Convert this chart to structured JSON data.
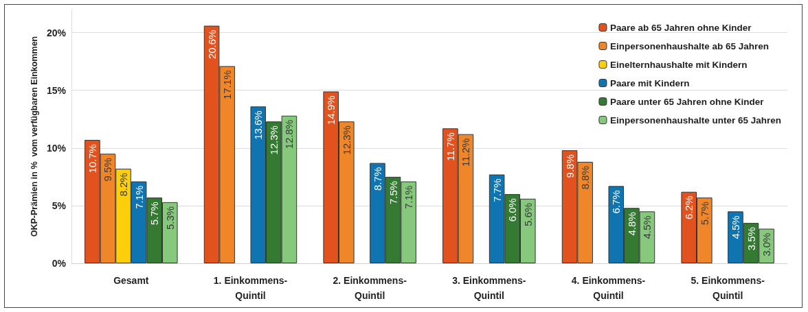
{
  "chart_data": {
    "type": "bar",
    "ylabel": "OKP-Prämien in %  vom verfügbaren Einkommen",
    "categories": [
      "Gesamt",
      "1. Einkommens-\nQuintil",
      "2. Einkommens-\nQuintil",
      "3. Einkommens-\nQuintil",
      "4. Einkommens-\nQuintil",
      "5. Einkommens-\nQuintil"
    ],
    "series": [
      {
        "name": "Paare ab 65 Jahren ohne Kinder",
        "color": "#e2521f",
        "values": [
          10.7,
          20.6,
          14.9,
          11.7,
          9.8,
          6.2
        ],
        "value_labels": [
          "10.7%",
          "20.6%",
          "14.9%",
          "11.7%",
          "9.8%",
          "6.2%"
        ]
      },
      {
        "name": "Einpersonenhaushalte ab 65 Jahren",
        "color": "#f0862a",
        "values": [
          9.5,
          17.1,
          12.3,
          11.2,
          8.8,
          5.7
        ],
        "value_labels": [
          "9.5%",
          "17.1%",
          "12.3%",
          "11.2%",
          "8.8%",
          "5.7%"
        ]
      },
      {
        "name": "Einelternhaushalte mit Kindern",
        "color": "#fccf0a",
        "values": [
          8.2,
          null,
          null,
          null,
          null,
          null
        ],
        "value_labels": [
          "8.2%",
          null,
          null,
          null,
          null,
          null
        ]
      },
      {
        "name": "Paare mit Kindern",
        "color": "#0f74b0",
        "values": [
          7.1,
          13.6,
          8.7,
          7.7,
          6.7,
          4.5
        ],
        "value_labels": [
          "7.1%",
          "13.6%",
          "8.7%",
          "7.7%",
          "6.7%",
          "4.5%"
        ]
      },
      {
        "name": "Paare unter 65 Jahren ohne Kinder",
        "color": "#357a32",
        "values": [
          5.7,
          12.3,
          7.5,
          6.0,
          4.8,
          3.5
        ],
        "value_labels": [
          "5.7%",
          "12.3%",
          "7.5%",
          "6.0%",
          "4.8%",
          "3.5%"
        ]
      },
      {
        "name": "Einpersonenhaushalte unter 65 Jahren",
        "color": "#86c97c",
        "values": [
          5.3,
          12.8,
          7.1,
          5.6,
          4.5,
          3.0
        ],
        "value_labels": [
          "5.3%",
          "12.8%",
          "7.1%",
          "5.6%",
          "4.5%",
          "3.0%"
        ]
      }
    ],
    "ylim": [
      0,
      22
    ],
    "yticks": [
      {
        "value": 0,
        "label": "0%"
      },
      {
        "value": 5,
        "label": "5%"
      },
      {
        "value": 10,
        "label": "10%"
      },
      {
        "value": 15,
        "label": "15%"
      },
      {
        "value": 20,
        "label": "20%"
      }
    ],
    "grid": "y",
    "legend": "top right"
  }
}
